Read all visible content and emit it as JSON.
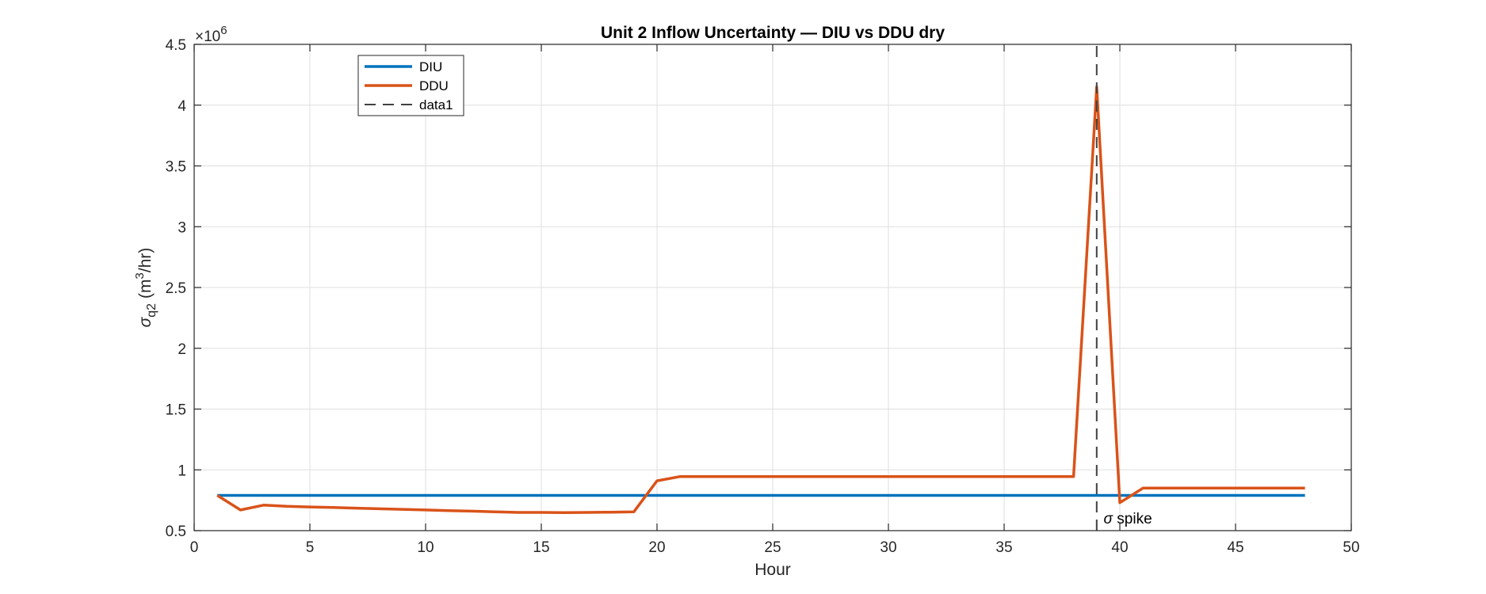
{
  "chart_data": {
    "type": "line",
    "title": "Unit 2 Inflow Uncertainty — DIU vs DDU dry",
    "xlabel": "Hour",
    "ylabel_symbol": "σ",
    "ylabel_sub": "q2",
    "ylabel_units": "(m",
    "ylabel_sup": "3",
    "ylabel_units_end": "/hr)",
    "y_exponent_base": "×10",
    "y_exponent_power": "6",
    "xlim": [
      0,
      50
    ],
    "ylim": [
      0.5,
      4.5
    ],
    "xticks": [
      0,
      5,
      10,
      15,
      20,
      25,
      30,
      35,
      40,
      45,
      50
    ],
    "yticks": [
      0.5,
      1,
      1.5,
      2,
      2.5,
      3,
      3.5,
      4,
      4.5
    ],
    "ytick_labels": [
      "0.5",
      "1",
      "1.5",
      "2",
      "2.5",
      "3",
      "3.5",
      "4",
      "4.5"
    ],
    "grid": true,
    "legend_position": "top-left",
    "series": [
      {
        "name": "DIU",
        "color": "#0072BD",
        "style": "solid",
        "x": [
          1,
          48
        ],
        "y": [
          0.79,
          0.79
        ]
      },
      {
        "name": "DDU",
        "color": "#D95319",
        "style": "solid",
        "x": [
          1,
          2,
          3,
          4,
          5,
          6,
          7,
          8,
          9,
          10,
          11,
          12,
          13,
          14,
          15,
          16,
          17,
          18,
          19,
          20,
          21,
          22,
          23,
          24,
          25,
          26,
          27,
          28,
          29,
          30,
          31,
          32,
          33,
          34,
          35,
          36,
          37,
          38,
          39,
          40,
          41,
          42,
          43,
          44,
          45,
          46,
          47,
          48
        ],
        "y": [
          0.79,
          0.67,
          0.71,
          0.7,
          0.695,
          0.69,
          0.685,
          0.68,
          0.675,
          0.67,
          0.665,
          0.66,
          0.655,
          0.65,
          0.65,
          0.648,
          0.65,
          0.652,
          0.655,
          0.91,
          0.945,
          0.945,
          0.945,
          0.945,
          0.945,
          0.945,
          0.945,
          0.945,
          0.945,
          0.945,
          0.945,
          0.945,
          0.945,
          0.945,
          0.945,
          0.945,
          0.945,
          0.945,
          4.15,
          0.73,
          0.85,
          0.85,
          0.85,
          0.85,
          0.85,
          0.85,
          0.85,
          0.85
        ]
      },
      {
        "name": "data1",
        "color": "#404040",
        "style": "dashed",
        "x": [
          39,
          39
        ],
        "y": [
          0.5,
          4.5
        ]
      }
    ],
    "annotation": {
      "symbol": "σ",
      "text": " spike",
      "x": 39.3,
      "y": 0.56
    }
  }
}
